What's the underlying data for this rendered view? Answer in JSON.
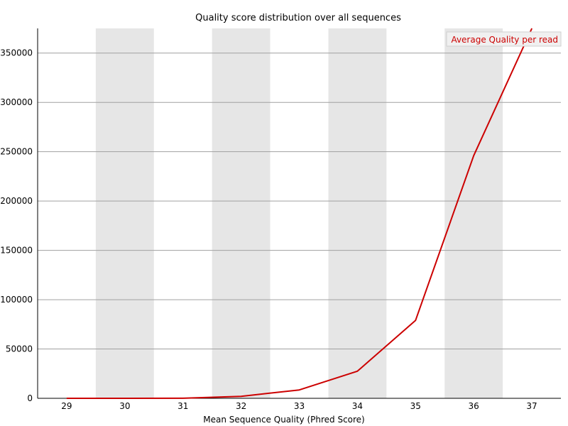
{
  "chart_data": {
    "type": "line",
    "title": "Quality score distribution over all sequences",
    "xlabel": "Mean Sequence Quality (Phred Score)",
    "ylabel": "",
    "x": [
      29,
      30,
      31,
      32,
      33,
      34,
      35,
      36,
      37
    ],
    "ylim": [
      0,
      375000
    ],
    "yticks": [
      0,
      50000,
      100000,
      150000,
      200000,
      250000,
      300000,
      350000
    ],
    "series": [
      {
        "name": "Average Quality per read",
        "color": "#cc0000",
        "values": [
          0,
          0,
          50,
          2000,
          8500,
          27500,
          79000,
          246000,
          375000
        ]
      }
    ],
    "grid": true,
    "alternating_band_color": "#e6e6e6",
    "legend_position": "top-right"
  }
}
